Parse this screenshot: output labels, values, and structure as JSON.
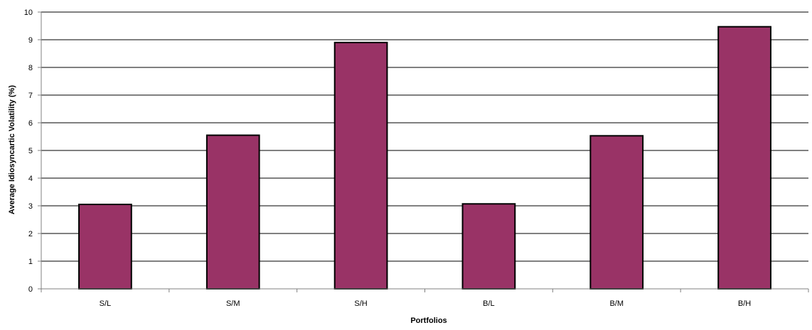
{
  "chart_data": {
    "type": "bar",
    "title": "",
    "xlabel": "Portfolios",
    "ylabel": "Average Idiosyncartic Volatility (%)",
    "categories": [
      "S/L",
      "S/M",
      "S/H",
      "B/L",
      "B/M",
      "B/H"
    ],
    "values": [
      3.05,
      5.55,
      8.9,
      3.07,
      5.53,
      9.47
    ],
    "ylim": [
      0,
      10
    ],
    "yticks": [
      "0",
      "1",
      "2",
      "3",
      "4",
      "5",
      "6",
      "7",
      "8",
      "9",
      "10"
    ],
    "grid": true,
    "legend": "none",
    "colors": {
      "bar_fill": "#993366",
      "bar_stroke": "#000000",
      "grid": "#000000",
      "axis": "#808080"
    }
  }
}
